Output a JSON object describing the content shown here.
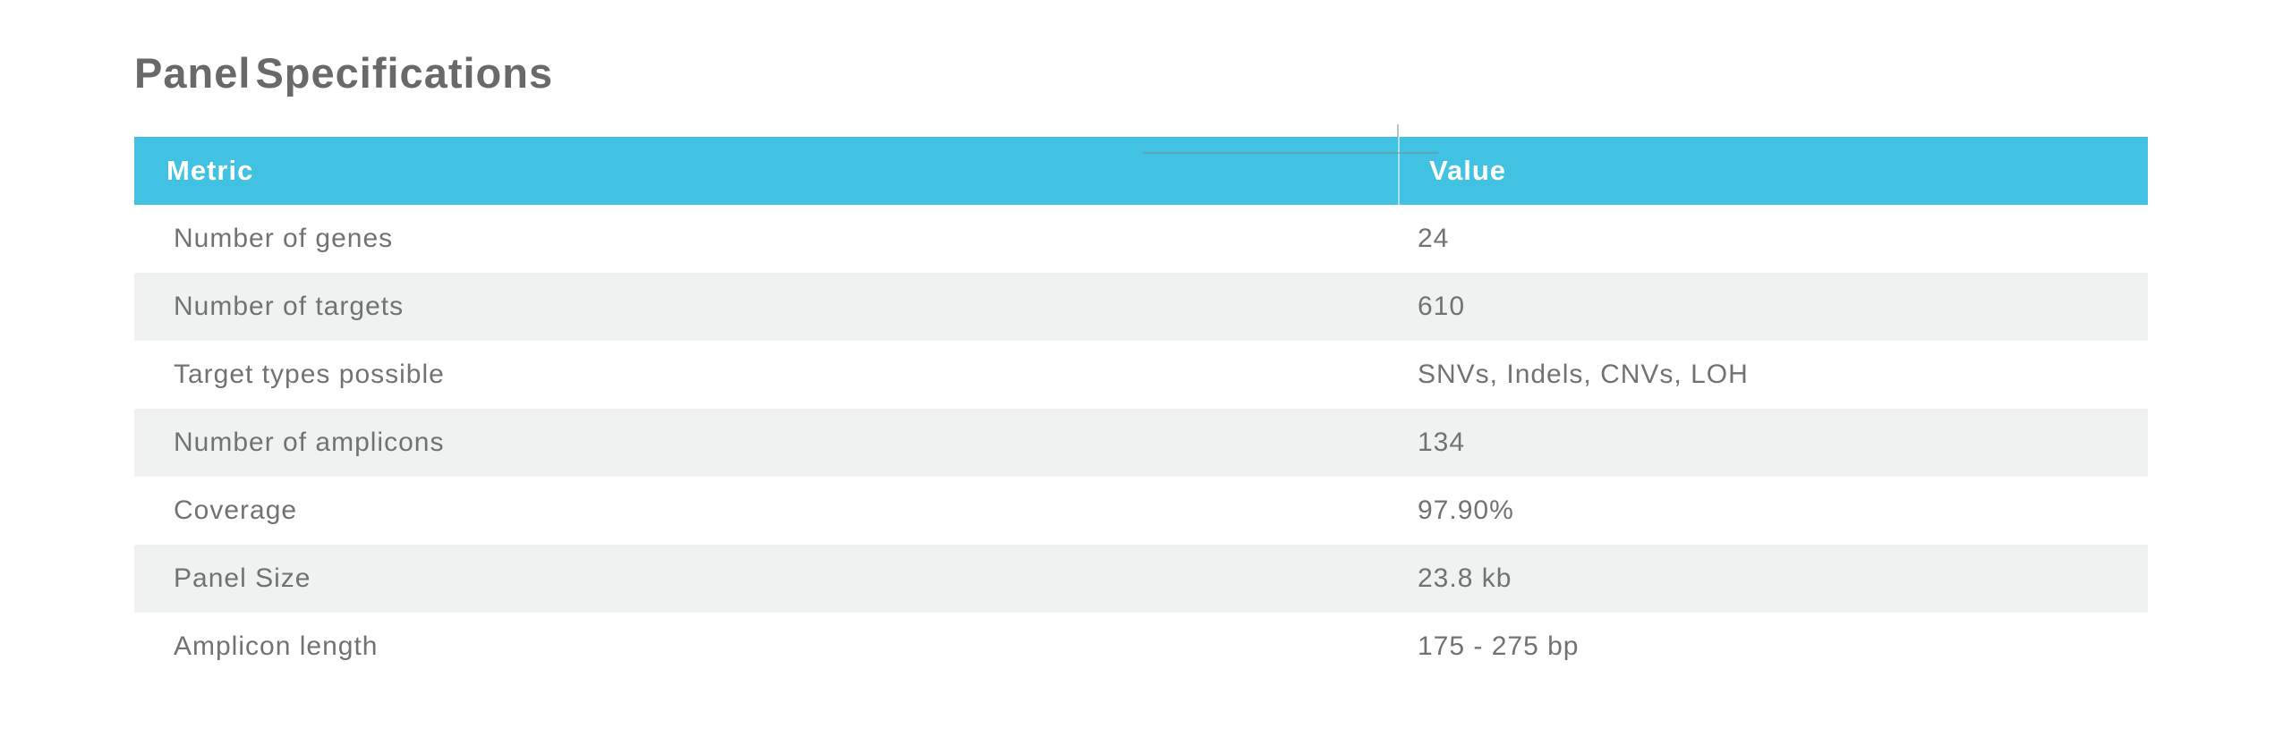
{
  "title": "Panel Specifications",
  "theme": {
    "accent": "#41c2e2",
    "stripe": "#f0f1f1",
    "header_text": "#ffffff",
    "body_text": "#717273",
    "title_text": "#686969"
  },
  "table": {
    "columns": [
      "Metric",
      "Value"
    ],
    "rows": [
      {
        "metric": "Number of genes",
        "value": "24"
      },
      {
        "metric": "Number of targets",
        "value": "610"
      },
      {
        "metric": "Target types possible",
        "value": "SNVs, Indels, CNVs, LOH"
      },
      {
        "metric": "Number of amplicons",
        "value": "134"
      },
      {
        "metric": "Coverage",
        "value": "97.90%"
      },
      {
        "metric": "Panel Size",
        "value": "23.8 kb"
      },
      {
        "metric": "Amplicon length",
        "value": "175 - 275 bp"
      }
    ]
  }
}
